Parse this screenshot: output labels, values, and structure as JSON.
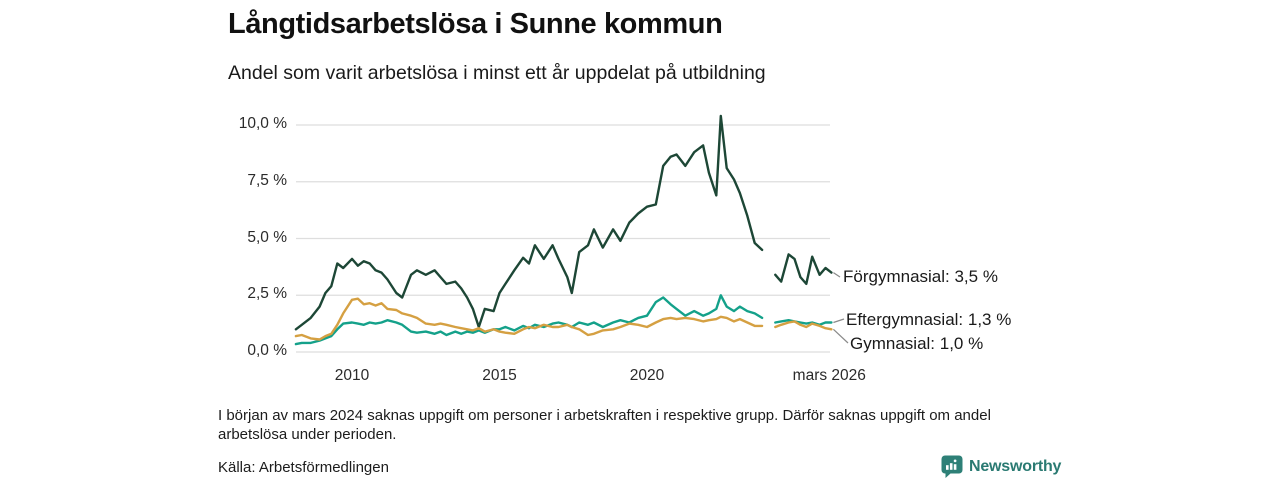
{
  "header": {
    "title": "Långtidsarbetslösa i Sunne kommun",
    "subtitle": "Andel som varit arbetslösa i minst ett år uppdelat på utbildning"
  },
  "chart_data": {
    "type": "line",
    "title": "Långtidsarbetslösa i Sunne kommun",
    "subtitle": "Andel som varit arbetslösa i minst ett år uppdelat på utbildning",
    "x_unit": "decimal_year",
    "xlim": [
      2008.0,
      2026.4
    ],
    "ylim": [
      0,
      10.5
    ],
    "grid": "horizontal",
    "legend_position": "right-end-labels",
    "missing_data_gap": "early 2024",
    "y_ticks": [
      {
        "value": 0,
        "label": "0,0 %"
      },
      {
        "value": 2.5,
        "label": "2,5 %"
      },
      {
        "value": 5,
        "label": "5,0 %"
      },
      {
        "value": 7.5,
        "label": "7,5 %"
      },
      {
        "value": 10,
        "label": "10,0 %"
      }
    ],
    "x_ticks": [
      {
        "value": 2010,
        "label": "2010"
      },
      {
        "value": 2015,
        "label": "2015"
      },
      {
        "value": 2020,
        "label": "2020"
      },
      {
        "value": 2026.18,
        "label": "mars 2026"
      }
    ],
    "x": [
      2008.1,
      2008.3,
      2008.6,
      2008.9,
      2009.1,
      2009.3,
      2009.5,
      2009.7,
      2010.0,
      2010.2,
      2010.4,
      2010.6,
      2010.8,
      2011.0,
      2011.2,
      2011.5,
      2011.7,
      2012.0,
      2012.2,
      2012.5,
      2012.8,
      2013.0,
      2013.2,
      2013.5,
      2013.7,
      2013.9,
      2014.1,
      2014.3,
      2014.5,
      2014.8,
      2015.0,
      2015.2,
      2015.5,
      2015.8,
      2016.0,
      2016.2,
      2016.5,
      2016.8,
      2017.0,
      2017.3,
      2017.45,
      2017.7,
      2018.0,
      2018.2,
      2018.5,
      2018.85,
      2019.1,
      2019.4,
      2019.7,
      2020.0,
      2020.3,
      2020.55,
      2020.8,
      2021.0,
      2021.3,
      2021.6,
      2021.9,
      2022.1,
      2022.35,
      2022.5,
      2022.7,
      2022.95,
      2023.15,
      2023.4,
      2023.65,
      2023.9,
      2024.1,
      2024.35,
      2024.55,
      2024.8,
      2025.0,
      2025.2,
      2025.4,
      2025.6,
      2025.85,
      2026.05,
      2026.25
    ],
    "series": [
      {
        "name": "Förgymnasial",
        "color": "#1d4736",
        "end_label": "Förgymnasial: 3,5 %",
        "end_value": "3,5 %",
        "values": [
          1.0,
          1.2,
          1.5,
          2.0,
          2.6,
          2.9,
          3.9,
          3.7,
          4.1,
          3.8,
          4.0,
          3.9,
          3.6,
          3.5,
          3.2,
          2.6,
          2.4,
          3.4,
          3.6,
          3.4,
          3.6,
          3.3,
          3.0,
          3.1,
          2.8,
          2.4,
          1.9,
          1.1,
          1.9,
          1.8,
          2.6,
          3.0,
          3.6,
          4.15,
          3.9,
          4.7,
          4.1,
          4.7,
          4.1,
          3.3,
          2.6,
          4.4,
          4.7,
          5.4,
          4.6,
          5.4,
          4.9,
          5.7,
          6.1,
          6.4,
          6.5,
          8.2,
          8.6,
          8.7,
          8.2,
          8.8,
          9.1,
          7.9,
          6.9,
          10.4,
          8.1,
          7.6,
          7.0,
          6.0,
          4.8,
          4.5,
          null,
          3.4,
          3.1,
          4.3,
          4.1,
          3.3,
          3.0,
          4.2,
          3.4,
          3.7,
          3.5
        ]
      },
      {
        "name": "Eftergymnasial",
        "color": "#14a18a",
        "end_label": "Eftergymnasial: 1,3 %",
        "end_value": "1,3 %",
        "values": [
          0.35,
          0.4,
          0.4,
          0.5,
          0.6,
          0.7,
          1.0,
          1.25,
          1.3,
          1.25,
          1.2,
          1.3,
          1.25,
          1.3,
          1.4,
          1.3,
          1.2,
          0.9,
          0.85,
          0.9,
          0.8,
          0.9,
          0.75,
          0.9,
          0.8,
          0.9,
          0.85,
          0.95,
          0.85,
          1.0,
          1.0,
          1.1,
          0.95,
          1.15,
          1.05,
          1.2,
          1.1,
          1.25,
          1.3,
          1.2,
          1.1,
          1.3,
          1.2,
          1.3,
          1.1,
          1.3,
          1.4,
          1.3,
          1.5,
          1.6,
          2.2,
          2.4,
          2.1,
          1.9,
          1.6,
          1.8,
          1.6,
          1.7,
          1.9,
          2.5,
          2.0,
          1.8,
          2.0,
          1.8,
          1.7,
          1.5,
          null,
          1.3,
          1.35,
          1.4,
          1.35,
          1.3,
          1.25,
          1.3,
          1.2,
          1.3,
          1.3
        ]
      },
      {
        "name": "Gymnasial",
        "color": "#d5a042",
        "end_label": "Gymnasial: 1,0 %",
        "end_value": "1,0 %",
        "values": [
          0.7,
          0.75,
          0.6,
          0.55,
          0.7,
          0.8,
          1.2,
          1.7,
          2.3,
          2.35,
          2.1,
          2.15,
          2.05,
          2.15,
          1.9,
          1.85,
          1.7,
          1.6,
          1.5,
          1.25,
          1.2,
          1.25,
          1.2,
          1.1,
          1.05,
          1.0,
          0.95,
          1.05,
          0.9,
          1.0,
          0.9,
          0.85,
          0.8,
          1.0,
          1.1,
          1.05,
          1.2,
          1.1,
          1.1,
          1.2,
          1.1,
          1.0,
          0.75,
          0.8,
          0.95,
          1.0,
          1.1,
          1.25,
          1.2,
          1.1,
          1.3,
          1.45,
          1.5,
          1.45,
          1.5,
          1.45,
          1.35,
          1.4,
          1.45,
          1.55,
          1.5,
          1.35,
          1.45,
          1.3,
          1.15,
          1.15,
          null,
          1.1,
          1.2,
          1.3,
          1.35,
          1.2,
          1.1,
          1.25,
          1.15,
          1.05,
          1.0
        ]
      }
    ]
  },
  "footnote": "I början av mars 2024 saknas uppgift om personer i arbetskraften i respektive grupp. Därför saknas uppgift om andel arbetslösa under perioden.",
  "source": "Källa: Arbetsförmedlingen",
  "logo": {
    "text": "Newsworthy",
    "color": "#2a7a72",
    "icon_color": "#2e8077",
    "icon": "bar-chart-speech-bubble"
  },
  "style": {
    "grid_color": "#dedede",
    "leader_color": "#8a8a8a"
  }
}
